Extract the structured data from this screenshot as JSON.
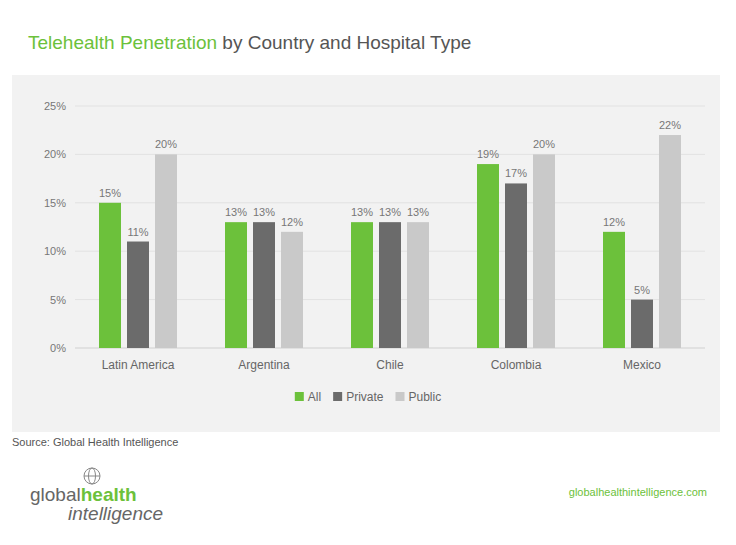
{
  "chart_data": {
    "type": "bar",
    "title": "Telehealth Penetration by Country and Hospital Type",
    "categories": [
      "Latin America",
      "Argentina",
      "Chile",
      "Colombia",
      "Mexico"
    ],
    "series": [
      {
        "name": "All",
        "color": "#6cc13b",
        "values": [
          15,
          13,
          13,
          19,
          12
        ],
        "value_labels": [
          "15%",
          "13%",
          "13%",
          "19%",
          "12%"
        ]
      },
      {
        "name": "Private",
        "color": "#6b6b6b",
        "values": [
          11,
          13,
          13,
          17,
          5
        ],
        "value_labels": [
          "11%",
          "13%",
          "13%",
          "17%",
          "5%"
        ]
      },
      {
        "name": "Public",
        "color": "#c9c9c9",
        "values": [
          20,
          12,
          13,
          20,
          22
        ],
        "value_labels": [
          "20%",
          "12%",
          "13%",
          "20%",
          "22%"
        ]
      }
    ],
    "ylim": [
      0,
      25
    ],
    "yticks": [
      {
        "value": 0,
        "label": "0%"
      },
      {
        "value": 5,
        "label": "5%"
      },
      {
        "value": 10,
        "label": "10%"
      },
      {
        "value": 15,
        "label": "15%"
      },
      {
        "value": 20,
        "label": "20%"
      },
      {
        "value": 25,
        "label": "25%"
      }
    ],
    "grid": true,
    "legend": "bottom",
    "data_labels": true,
    "annotations": [
      "Source: Global Health Intelligence",
      "globalhealthintelligence.com"
    ],
    "logo": [
      "global",
      "health",
      "intelligence"
    ]
  }
}
